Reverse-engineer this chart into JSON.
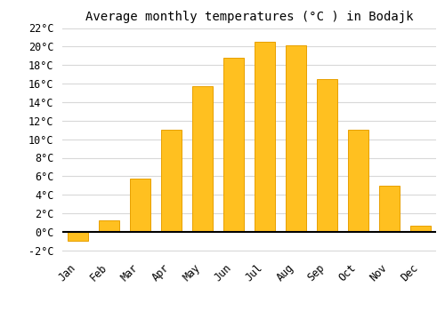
{
  "title": "Average monthly temperatures (°C ) in Bodajk",
  "months": [
    "Jan",
    "Feb",
    "Mar",
    "Apr",
    "May",
    "Jun",
    "Jul",
    "Aug",
    "Sep",
    "Oct",
    "Nov",
    "Dec"
  ],
  "values": [
    -1.0,
    1.2,
    5.7,
    11.0,
    15.7,
    18.8,
    20.5,
    20.1,
    16.5,
    11.0,
    5.0,
    0.7
  ],
  "bar_color_face": "#FFC020",
  "bar_color_edge": "#E8A000",
  "ylim": [
    -2.5,
    22
  ],
  "yticks": [
    -2,
    0,
    2,
    4,
    6,
    8,
    10,
    12,
    14,
    16,
    18,
    20,
    22
  ],
  "grid_color": "#d8d8d8",
  "background_color": "#ffffff",
  "title_fontsize": 10,
  "tick_fontsize": 8.5,
  "font_family": "monospace",
  "bar_width": 0.65
}
